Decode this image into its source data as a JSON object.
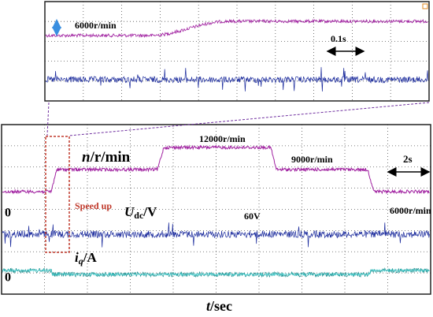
{
  "top_panel": {
    "speed_label": "6000r/min",
    "time_scale": "0.1s"
  },
  "bottom_panel": {
    "speed_axis": {
      "symbol": "n",
      "unit": "/r/min"
    },
    "speed_high": "12000r/min",
    "speed_mid": "9000r/min",
    "speed_low": "6000r/min",
    "time_scale": "2s",
    "annotation": "Speed up",
    "voltage_axis": {
      "symbol": "U",
      "subscript": "dc",
      "unit": "/V"
    },
    "voltage_label": "60V",
    "current_axis": {
      "symbol": "i",
      "subscript": "q",
      "unit": "/A"
    },
    "zero_voltage": "0",
    "zero_current": "0",
    "x_axis": {
      "symbol": "t",
      "unit": "/sec"
    }
  }
}
